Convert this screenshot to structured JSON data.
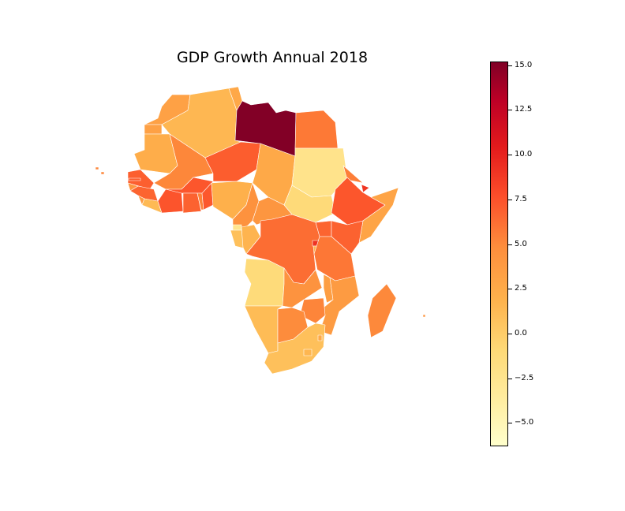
{
  "title": "GDP Growth Annual 2018",
  "colormap": {
    "name": "YlOrRd",
    "stops": [
      "#ffffcc",
      "#ffeda0",
      "#fed976",
      "#feb24c",
      "#fd8d3c",
      "#fc4e2a",
      "#e31a1c",
      "#bd0026",
      "#800026"
    ]
  },
  "chart_data": {
    "type": "choropleth",
    "title": "GDP Growth Annual 2018",
    "metric": "GDP Growth Annual 2018 (%)",
    "colorbar": {
      "min": -6.3,
      "max": 15.2,
      "ticks": [
        {
          "value": 15.0,
          "label": "15.0"
        },
        {
          "value": 12.5,
          "label": "12.5"
        },
        {
          "value": 10.0,
          "label": "10.0"
        },
        {
          "value": 7.5,
          "label": "7.5"
        },
        {
          "value": 5.0,
          "label": "5.0"
        },
        {
          "value": 2.5,
          "label": "2.5"
        },
        {
          "value": 0.0,
          "label": "0.0"
        },
        {
          "value": -2.5,
          "label": "−2.5"
        },
        {
          "value": -5.0,
          "label": "−5.0"
        }
      ]
    },
    "regions": [
      {
        "id": "morocco",
        "value": 3.0
      },
      {
        "id": "western-sahara",
        "value": 3.0
      },
      {
        "id": "algeria",
        "value": 1.4
      },
      {
        "id": "tunisia",
        "value": 2.5
      },
      {
        "id": "libya",
        "value": 15.1
      },
      {
        "id": "egypt",
        "value": 5.3
      },
      {
        "id": "mauritania",
        "value": 2.1
      },
      {
        "id": "mali",
        "value": 4.7
      },
      {
        "id": "niger",
        "value": 6.5
      },
      {
        "id": "chad",
        "value": 2.4
      },
      {
        "id": "sudan",
        "value": -2.3
      },
      {
        "id": "south-sudan",
        "value": -1.1
      },
      {
        "id": "eritrea",
        "value": 5.1
      },
      {
        "id": "ethiopia",
        "value": 6.8
      },
      {
        "id": "djibouti",
        "value": 8.4
      },
      {
        "id": "somalia",
        "value": 2.8
      },
      {
        "id": "senegal",
        "value": 6.4
      },
      {
        "id": "gambia",
        "value": 6.5
      },
      {
        "id": "guinea-bissau",
        "value": 3.8
      },
      {
        "id": "guinea",
        "value": 6.2
      },
      {
        "id": "sierra-leone",
        "value": 3.5
      },
      {
        "id": "liberia",
        "value": 1.2
      },
      {
        "id": "cote-divoire",
        "value": 6.9
      },
      {
        "id": "burkina-faso",
        "value": 6.8
      },
      {
        "id": "ghana",
        "value": 6.3
      },
      {
        "id": "togo",
        "value": 4.9
      },
      {
        "id": "benin",
        "value": 6.7
      },
      {
        "id": "nigeria",
        "value": 1.9
      },
      {
        "id": "cameroon",
        "value": 4.1
      },
      {
        "id": "central-african-republic",
        "value": 3.8
      },
      {
        "id": "equatorial-guinea",
        "value": -2.5
      },
      {
        "id": "gabon",
        "value": 0.8
      },
      {
        "id": "republic-of-congo",
        "value": 1.6
      },
      {
        "id": "dr-congo",
        "value": 5.8
      },
      {
        "id": "uganda",
        "value": 6.2
      },
      {
        "id": "kenya",
        "value": 6.3
      },
      {
        "id": "rwanda",
        "value": 8.6
      },
      {
        "id": "burundi",
        "value": 1.6
      },
      {
        "id": "tanzania",
        "value": 5.4
      },
      {
        "id": "angola",
        "value": -1.2
      },
      {
        "id": "zambia",
        "value": 4.0
      },
      {
        "id": "malawi",
        "value": 3.2
      },
      {
        "id": "mozambique",
        "value": 3.4
      },
      {
        "id": "zimbabwe",
        "value": 4.8
      },
      {
        "id": "namibia",
        "value": 1.1
      },
      {
        "id": "botswana",
        "value": 4.5
      },
      {
        "id": "south-africa",
        "value": 0.8
      },
      {
        "id": "lesotho",
        "value": 1.5
      },
      {
        "id": "eswatini",
        "value": 2.4
      },
      {
        "id": "madagascar",
        "value": 4.6
      },
      {
        "id": "cape-verde",
        "value": 4.7
      },
      {
        "id": "mauritius",
        "value": 3.8
      }
    ]
  }
}
